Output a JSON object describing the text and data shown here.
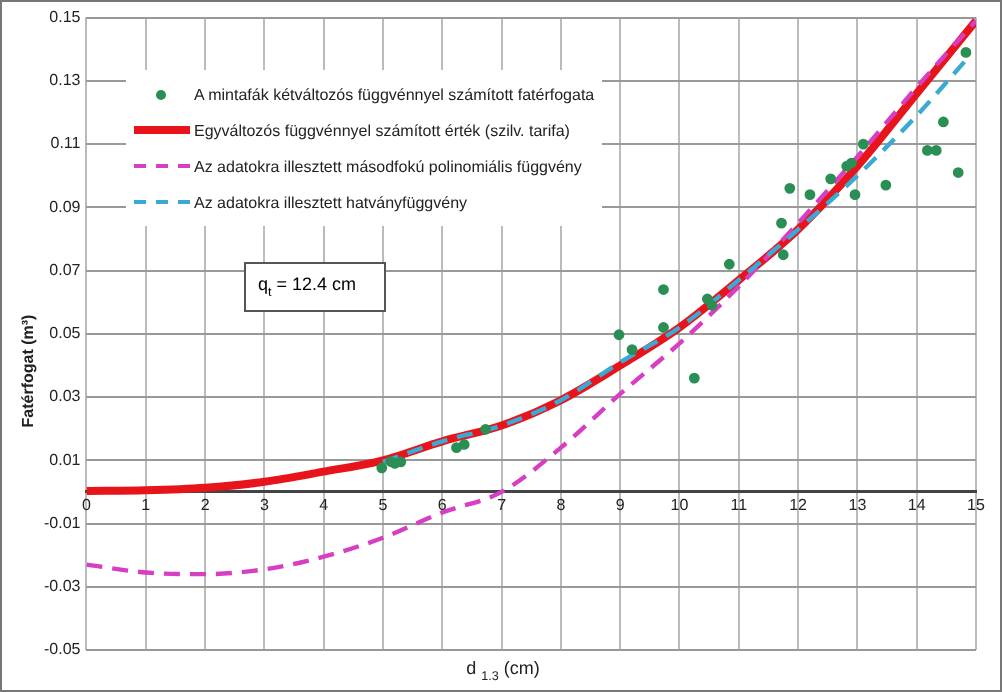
{
  "chart_data": {
    "type": "scatter",
    "xlabel": "d $_{1.3}$ (cm)",
    "ylabel": "Fatérfogat (m³)",
    "xlim": [
      0,
      15
    ],
    "xticks": [
      0,
      1,
      2,
      3,
      4,
      5,
      6,
      7,
      8,
      9,
      10,
      11,
      12,
      13,
      14,
      15
    ],
    "ylim": [
      -0.05,
      0.15
    ],
    "yticks": [
      -0.05,
      -0.03,
      -0.01,
      0.01,
      0.03,
      0.05,
      0.07,
      0.09,
      0.11,
      0.13,
      0.15
    ],
    "grid": true,
    "legend": "top left",
    "annotations": [
      "q$_{t}$ = 12.4 cm"
    ],
    "series": [
      {
        "name": "A mintafák kétváltozós függvénnyel számított fatérfogata",
        "marker": "circle",
        "color": "#2a8f55",
        "x": [
          4.98,
          5.13,
          5.2,
          5.3,
          6.24,
          6.37,
          6.73,
          8.98,
          9.2,
          9.73,
          9.73,
          10.25,
          10.47,
          10.55,
          10.84,
          11.72,
          11.75,
          11.86,
          12.2,
          12.55,
          12.82,
          12.9,
          12.96,
          13.1,
          13.48,
          14.18,
          14.33,
          14.45,
          14.7,
          14.83
        ],
        "values": [
          0.0076,
          0.0096,
          0.009,
          0.0095,
          0.014,
          0.015,
          0.0198,
          0.0497,
          0.045,
          0.064,
          0.052,
          0.036,
          0.061,
          0.059,
          0.072,
          0.085,
          0.075,
          0.096,
          0.094,
          0.099,
          0.103,
          0.104,
          0.094,
          0.11,
          0.097,
          0.108,
          0.108,
          0.117,
          0.101,
          0.139
        ]
      },
      {
        "name": "Egyváltozós függvénnyel számított érték (szilv. tarifa)",
        "type": "line",
        "line_style": "solid",
        "marker": "none",
        "color": "#e8141c",
        "x": [
          0,
          1,
          2,
          3,
          4,
          5,
          6,
          7,
          8,
          9,
          10,
          11,
          12,
          13,
          14,
          15
        ],
        "values": [
          0.0003,
          0.0005,
          0.0013,
          0.0032,
          0.0064,
          0.01,
          0.016,
          0.021,
          0.029,
          0.04,
          0.052,
          0.067,
          0.083,
          0.103,
          0.126,
          0.149
        ]
      },
      {
        "name": "Az adatokra illesztett másodfokú polinomiális függvény",
        "type": "line",
        "line_style": "dashed",
        "marker": "none",
        "color": "#d63fc4",
        "x": [
          0,
          1,
          2,
          3,
          4,
          5,
          6,
          7,
          8,
          9,
          10,
          11,
          12,
          13,
          14,
          15
        ],
        "values": [
          -0.023,
          -0.0255,
          -0.026,
          -0.0245,
          -0.0205,
          -0.0145,
          -0.0065,
          0.0,
          0.014,
          0.031,
          0.047,
          0.065,
          0.085,
          0.106,
          0.128,
          0.149
        ]
      },
      {
        "name": "Az adatokra illesztett hatványfüggvény",
        "type": "line",
        "line_style": "dashed",
        "marker": "none",
        "color": "#3aa9d4",
        "x": [
          5,
          6,
          7,
          8,
          9,
          10,
          11,
          12,
          13,
          14,
          14.85
        ],
        "values": [
          0.0095,
          0.016,
          0.021,
          0.029,
          0.041,
          0.052,
          0.067,
          0.083,
          0.1,
          0.119,
          0.137
        ]
      }
    ]
  }
}
